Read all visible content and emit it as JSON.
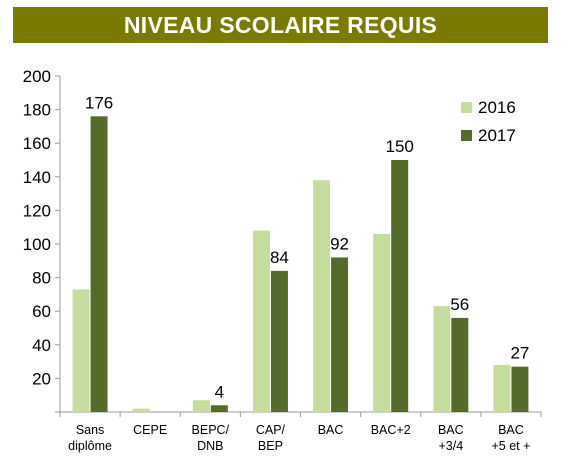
{
  "title": "NIVEAU SCOLAIRE REQUIS",
  "colors": {
    "banner_bg": "#7a7a00",
    "series_2016": "#c4dd9d",
    "series_2017": "#546b2a",
    "axis": "#9a9a9a",
    "text": "#000000"
  },
  "chart_data": {
    "type": "bar",
    "title": "NIVEAU SCOLAIRE REQUIS",
    "categories": [
      [
        "Sans",
        "diplôme"
      ],
      [
        "CEPE"
      ],
      [
        "BEPC/",
        "DNB"
      ],
      [
        "CAP/",
        "BEP"
      ],
      [
        "BAC"
      ],
      [
        "BAC+2"
      ],
      [
        "BAC",
        "+3/4"
      ],
      [
        "BAC",
        "+5 et +"
      ]
    ],
    "series": [
      {
        "name": "2016",
        "values": [
          73,
          2,
          7,
          108,
          138,
          106,
          63,
          28
        ]
      },
      {
        "name": "2017",
        "values": [
          176,
          0,
          4,
          84,
          92,
          150,
          56,
          27
        ]
      }
    ],
    "data_labels_2017": [
      "176",
      "",
      "4",
      "84",
      "92",
      "150",
      "56",
      "27"
    ],
    "ylim": [
      0,
      200
    ],
    "yticks": [
      0,
      20,
      40,
      60,
      80,
      100,
      120,
      140,
      160,
      180,
      200
    ],
    "ytick_labels": [
      "",
      "20",
      "40",
      "60",
      "80",
      "100",
      "120",
      "140",
      "160",
      "180",
      "200"
    ],
    "xlabel": "",
    "ylabel": "",
    "grid": false,
    "legend_position": "top-right"
  }
}
